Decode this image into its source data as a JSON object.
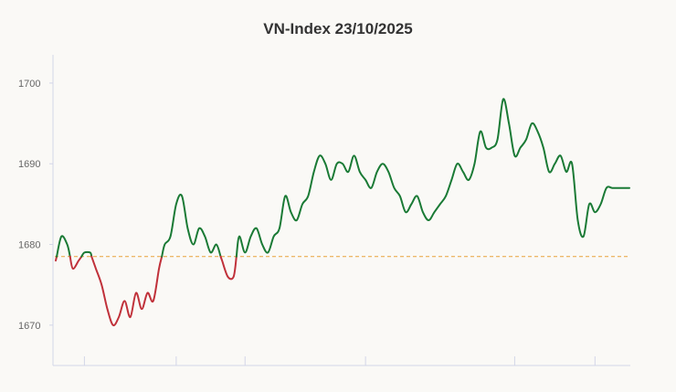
{
  "chart_data": {
    "type": "line",
    "title": "VN-Index 23/10/2025",
    "xlabel": "",
    "ylabel": "",
    "ylim": [
      1665,
      1703.5
    ],
    "xlim": [
      0,
      100
    ],
    "y_ticks": [
      1670,
      1680,
      1690,
      1700
    ],
    "y_tick_labels": [
      "1670",
      "1680",
      "1690",
      "1700"
    ],
    "reference_value": 1678.5,
    "grid": false,
    "legend": "none",
    "colors": {
      "above": "#1a7a35",
      "below": "#c0313a",
      "reference": "#e8a33a",
      "axis": "#d3d6e8"
    },
    "x": [
      0,
      1,
      2,
      3,
      4,
      5,
      6,
      7,
      8,
      9,
      10,
      11,
      12,
      13,
      14,
      15,
      16,
      17,
      18,
      19,
      20,
      21,
      22,
      23,
      24,
      25,
      26,
      27,
      28,
      29,
      30,
      31,
      32,
      33,
      34,
      35,
      36,
      37,
      38,
      39,
      40,
      41,
      42,
      43,
      44,
      45,
      46,
      47,
      48,
      49,
      50,
      51,
      52,
      53,
      54,
      55,
      56,
      57,
      58,
      59,
      60,
      61,
      62,
      63,
      64,
      65,
      66,
      67,
      68,
      69,
      70,
      71,
      72,
      73,
      74,
      75,
      76,
      77,
      78,
      79,
      80,
      81,
      82,
      83,
      84,
      85,
      86,
      87,
      88,
      89,
      90,
      91,
      92,
      93,
      94,
      95,
      96,
      97,
      98,
      99,
      100
    ],
    "values": [
      1678,
      1681,
      1680,
      1677,
      1678,
      1679,
      1679,
      1677,
      1675,
      1672,
      1670,
      1671,
      1673,
      1671,
      1674,
      1672,
      1674,
      1673,
      1677,
      1680,
      1681,
      1685,
      1686,
      1682,
      1680,
      1682,
      1681,
      1679,
      1680,
      1678,
      1676,
      1676,
      1681,
      1679,
      1681,
      1682,
      1680,
      1679,
      1681,
      1682,
      1686,
      1684,
      1683,
      1685,
      1686,
      1689,
      1691,
      1690,
      1688,
      1690,
      1690,
      1689,
      1691,
      1689,
      1688,
      1687,
      1689,
      1690,
      1689,
      1687,
      1686,
      1684,
      1685,
      1686,
      1684,
      1683,
      1684,
      1685,
      1686,
      1688,
      1690,
      1689,
      1688,
      1690,
      1694,
      1692,
      1692,
      1693,
      1698,
      1695,
      1691,
      1692,
      1693,
      1695,
      1694,
      1692,
      1689,
      1690,
      1691,
      1689,
      1690,
      1683,
      1681,
      1685,
      1684,
      1685,
      1687,
      1687,
      1687,
      1687,
      1687
    ]
  }
}
